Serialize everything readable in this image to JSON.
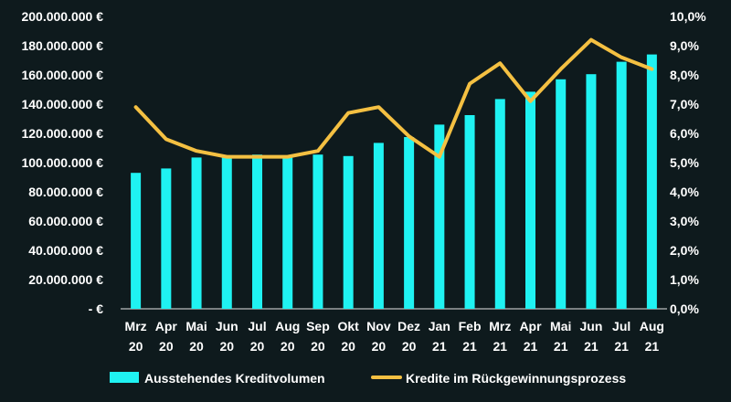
{
  "chart_data": {
    "type": "bar+line",
    "title": "",
    "categories": [
      [
        "Mrz",
        "20"
      ],
      [
        "Apr",
        "20"
      ],
      [
        "Mai",
        "20"
      ],
      [
        "Jun",
        "20"
      ],
      [
        "Jul",
        "20"
      ],
      [
        "Aug",
        "20"
      ],
      [
        "Sep",
        "20"
      ],
      [
        "Okt",
        "20"
      ],
      [
        "Nov",
        "20"
      ],
      [
        "Dez",
        "20"
      ],
      [
        "Jan",
        "21"
      ],
      [
        "Feb",
        "21"
      ],
      [
        "Mrz",
        "21"
      ],
      [
        "Apr",
        "21"
      ],
      [
        "Mai",
        "21"
      ],
      [
        "Jun",
        "21"
      ],
      [
        "Jul",
        "21"
      ],
      [
        "Aug",
        "21"
      ]
    ],
    "series": [
      {
        "name": "Ausstehendes Kreditvolumen",
        "type": "bar",
        "axis": "left",
        "color": "#1ff2f2",
        "values": [
          93000000,
          96000000,
          103500000,
          104000000,
          105500000,
          104500000,
          105500000,
          104500000,
          113500000,
          117500000,
          126000000,
          132500000,
          143500000,
          148500000,
          157000000,
          160500000,
          169000000,
          174000000
        ]
      },
      {
        "name": "Kredite im Rückgewinnungsprozess",
        "type": "line",
        "axis": "right",
        "color": "#f4c042",
        "values": [
          6.9,
          5.8,
          5.4,
          5.2,
          5.2,
          5.2,
          5.4,
          6.7,
          6.9,
          5.9,
          5.2,
          7.7,
          8.4,
          7.1,
          8.2,
          9.2,
          8.6,
          8.2
        ]
      }
    ],
    "y_left": {
      "min": 0,
      "max": 200000000,
      "tick_labels": [
        "-   €",
        "20.000.000 €",
        "40.000.000 €",
        "60.000.000 €",
        "80.000.000 €",
        "100.000.000 €",
        "120.000.000 €",
        "140.000.000 €",
        "160.000.000 €",
        "180.000.000 €",
        "200.000.000 €"
      ]
    },
    "y_right": {
      "min": 0,
      "max": 10,
      "tick_labels": [
        "0,0%",
        "1,0%",
        "2,0%",
        "3,0%",
        "4,0%",
        "5,0%",
        "6,0%",
        "7,0%",
        "8,0%",
        "9,0%",
        "10,0%"
      ]
    },
    "grid": false,
    "legend_position": "bottom"
  },
  "colors": {
    "background": "#0e1a1d",
    "text": "#ffffff",
    "axis": "#e6e6e6"
  }
}
